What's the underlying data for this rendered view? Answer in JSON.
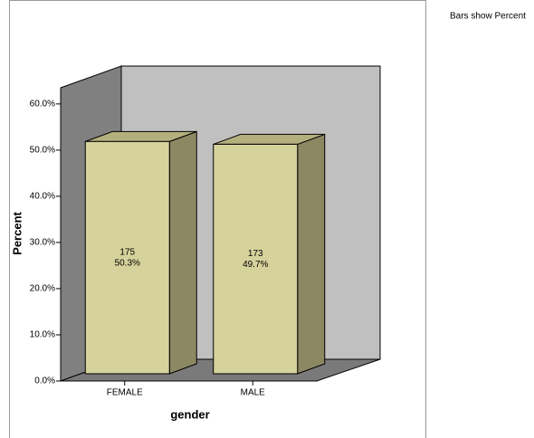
{
  "chart_data": {
    "type": "bar3d",
    "note": "Bars show Percent",
    "xlabel": "gender",
    "ylabel": "Percent",
    "categories": [
      "FEMALE",
      "MALE"
    ],
    "values": [
      50.3,
      49.7
    ],
    "value_labels": [
      "50.3%",
      "49.7%"
    ],
    "counts": [
      175,
      173
    ],
    "color": "#d6d29c",
    "ylim": [
      0,
      63.5
    ],
    "yticks": [
      {
        "value": 0,
        "label": "0.0%"
      },
      {
        "value": 10,
        "label": "10.0%"
      },
      {
        "value": 20,
        "label": "20.0%"
      },
      {
        "value": 30,
        "label": "30.0%"
      },
      {
        "value": 40,
        "label": "40.0%"
      },
      {
        "value": 50,
        "label": "50.0%"
      },
      {
        "value": 60,
        "label": "60.0%"
      }
    ]
  }
}
